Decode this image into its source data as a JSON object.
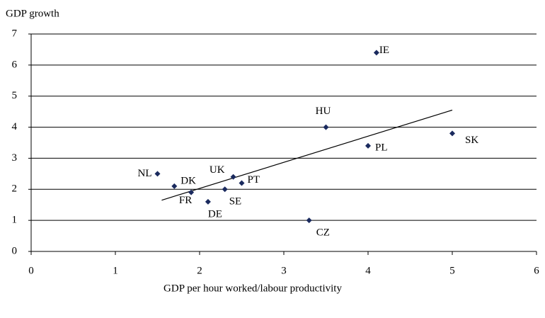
{
  "chart_data": {
    "type": "scatter",
    "y_label": "GDP growth",
    "x_label": "GDP per hour worked/labour productivity",
    "series": [
      {
        "color": "#1a2a5e",
        "labels": [
          "IE",
          "HU",
          "SK",
          "PL",
          "NL",
          "DK",
          "UK",
          "PT",
          "FR",
          "SE",
          "DE",
          "CZ"
        ],
        "x": [
          4.1,
          3.5,
          5.0,
          4.0,
          1.5,
          1.7,
          2.4,
          2.5,
          1.9,
          2.3,
          2.1,
          3.3
        ],
        "values": [
          6.4,
          4.0,
          3.8,
          3.4,
          2.5,
          2.1,
          2.4,
          2.2,
          1.9,
          2.0,
          1.6,
          1.0
        ]
      }
    ],
    "trendline": {
      "x": [
        1.55,
        5.0
      ],
      "y": [
        1.65,
        4.55
      ]
    },
    "xlim": [
      0,
      6
    ],
    "xticks": [
      0,
      1,
      2,
      3,
      4,
      5,
      6
    ],
    "ylim": [
      0,
      7
    ],
    "yticks": [
      0,
      1,
      2,
      3,
      4,
      5,
      6,
      7
    ],
    "grid": true
  }
}
